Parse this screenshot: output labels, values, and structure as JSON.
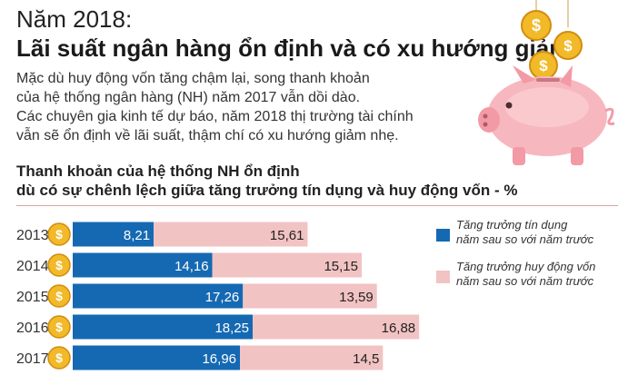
{
  "header": {
    "year_title": "Năm 2018:",
    "main_title": "Lãi suất ngân hàng ổn định và có xu hướng giảm",
    "intro_lines": [
      "Mặc dù huy động vốn tăng chậm lại, song thanh khoản",
      "của hệ thống ngân hàng (NH) năm 2017 vẫn dồi dào.",
      "Các chuyên gia kinh tế dự báo, năm 2018 thị trường tài chính",
      "vẫn sẽ ổn định về lãi suất, thậm chí có xu hướng giảm nhẹ."
    ]
  },
  "illustration": {
    "coin_symbol": "$",
    "icon": "piggy-bank-icon"
  },
  "chart_data": {
    "type": "bar",
    "orientation": "horizontal",
    "stacked": true,
    "title_lines": [
      "Thanh khoản của hệ thống NH ổn định",
      "dù có sự chênh lệch giữa tăng trưởng tín dụng và huy động vốn - %"
    ],
    "categories": [
      "2013",
      "2014",
      "2015",
      "2016",
      "2017"
    ],
    "series": [
      {
        "name_lines": [
          "Tăng trưởng tín dụng",
          "năm sau so với năm trước"
        ],
        "values": [
          8.21,
          14.16,
          17.26,
          18.25,
          16.96
        ],
        "labels": [
          "8,21",
          "14,16",
          "17,26",
          "18,25",
          "16,96"
        ],
        "color": "#1569b3"
      },
      {
        "name_lines": [
          "Tăng trưởng huy động vốn",
          "năm sau so với năm trước"
        ],
        "values": [
          15.61,
          15.15,
          13.59,
          16.88,
          14.5
        ],
        "labels": [
          "15,61",
          "15,15",
          "13,59",
          "16,88",
          "14,5"
        ],
        "color": "#f2c3c3"
      }
    ],
    "coin_symbol": "$",
    "legend_position": "right",
    "grid": false
  }
}
